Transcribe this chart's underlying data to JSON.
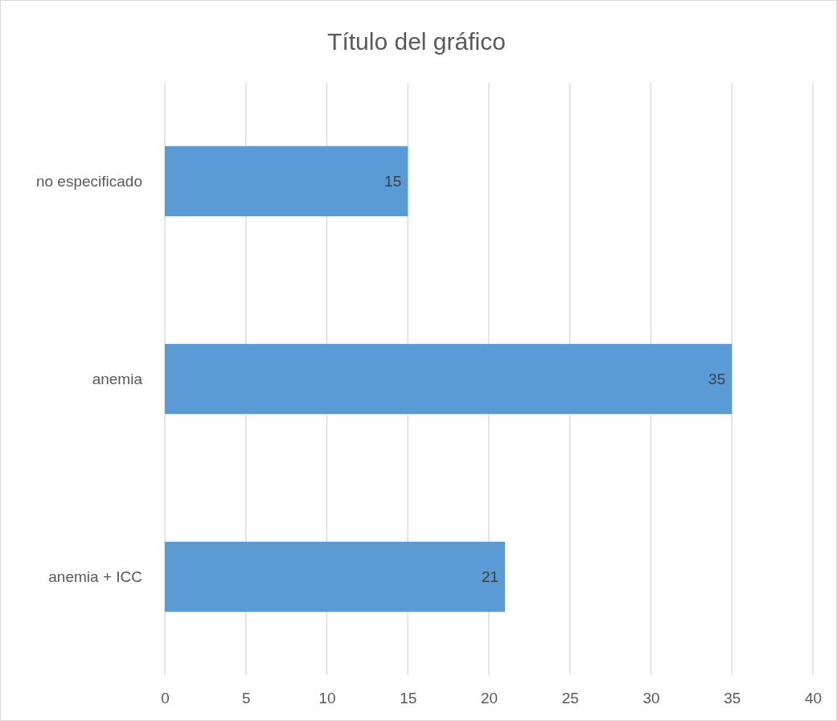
{
  "chart_data": {
    "type": "bar",
    "orientation": "horizontal",
    "title": "Título del gráfico",
    "categories": [
      "no especificado",
      "anemia",
      "anemia + ICC"
    ],
    "values": [
      15,
      35,
      21
    ],
    "color": "#5b9bd5",
    "data_labels": true,
    "xlim": [
      0,
      40
    ],
    "xticks": [
      0,
      5,
      10,
      15,
      20,
      25,
      30,
      35,
      40
    ],
    "grid": "x"
  }
}
